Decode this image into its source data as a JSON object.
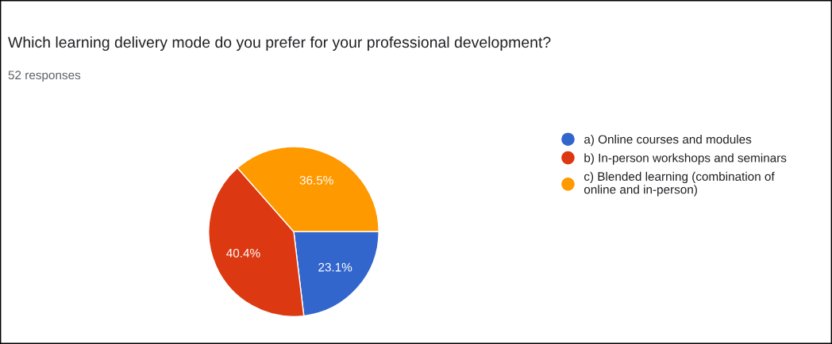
{
  "chart_data": {
    "type": "pie",
    "title": "Which learning delivery mode do you prefer for your professional development?",
    "subtitle": "52 responses",
    "categories": [
      "a) Online courses and modules",
      "b) In-person workshops and seminars",
      "c) Blended learning (combination of\nonline and in-person)"
    ],
    "values": [
      23.1,
      40.4,
      36.5
    ],
    "value_labels": [
      "23.1%",
      "40.4%",
      "36.5%"
    ],
    "colors": [
      "#3366cc",
      "#dc3912",
      "#ff9900"
    ],
    "legend": "right"
  }
}
